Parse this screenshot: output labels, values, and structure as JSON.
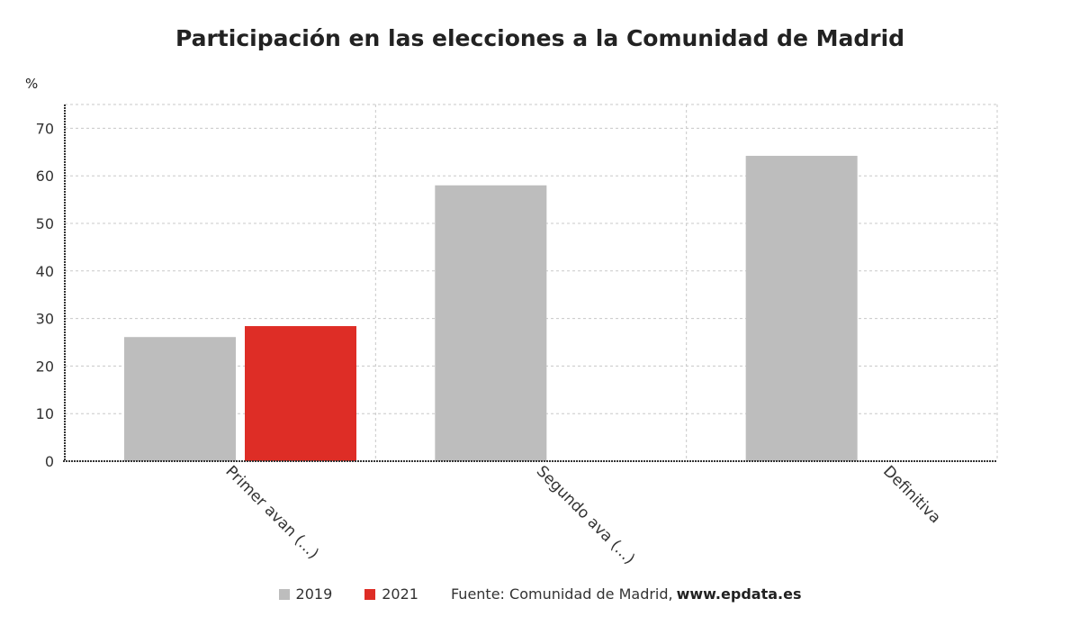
{
  "chart_data": {
    "type": "bar",
    "title": "Participación en las elecciones a la Comunidad de Madrid",
    "ylabel": "%",
    "xlabel": "",
    "ylim": [
      0,
      75
    ],
    "yticks": [
      0,
      10,
      20,
      30,
      40,
      50,
      60,
      70
    ],
    "grid": true,
    "categories": [
      "Primer avan (...)",
      "Segundo ava (...)",
      "Definitiva"
    ],
    "series": [
      {
        "name": "2019",
        "color": "#bdbdbd",
        "values": [
          26.1,
          58.0,
          64.2
        ]
      },
      {
        "name": "2021",
        "color": "#de2d26",
        "values": [
          28.4,
          null,
          null
        ]
      }
    ],
    "legend_position": "bottom"
  },
  "source": {
    "label": "Fuente: Comunidad de Madrid,",
    "site": "www.epdata.es"
  }
}
